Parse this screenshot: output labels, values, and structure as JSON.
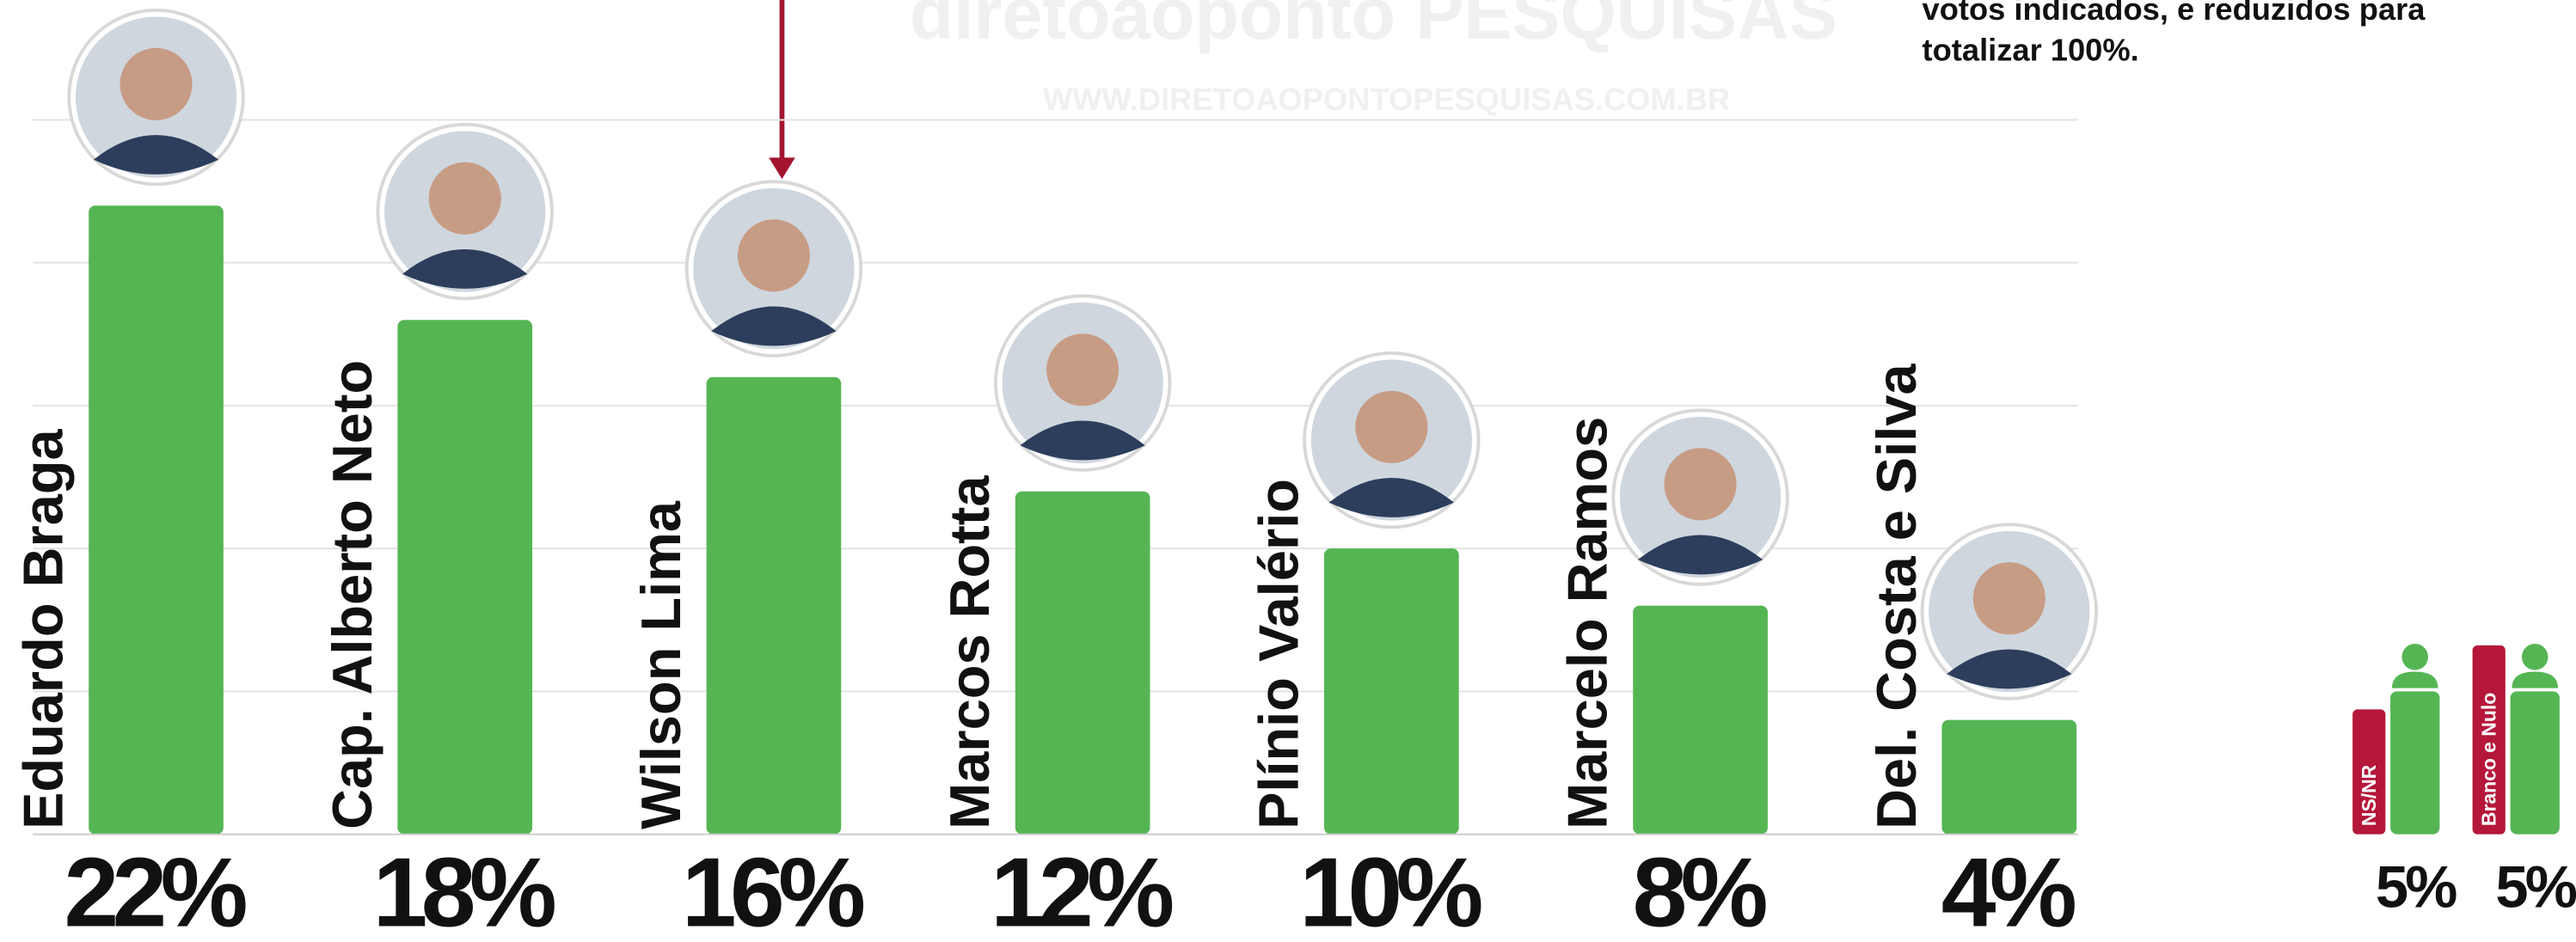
{
  "chart_data": {
    "type": "bar",
    "watermark": "diretoaoponto PESQUISAS",
    "watermark_url": "WWW.DIRETOAOPONTOPESQUISAS.COM.BR",
    "note": [
      "votos indicados, e reduzidos para",
      "totalizar 100%."
    ],
    "categories": [
      "Eduardo Braga",
      "Cap. Alberto Neto",
      "Wilson Lima",
      "Marcos Rotta",
      "Plínio Valério",
      "Marcelo Ramos",
      "Del. Costa e Silva"
    ],
    "values": [
      22,
      18,
      16,
      12,
      10,
      8,
      4
    ],
    "value_labels": [
      "22%",
      "18%",
      "16%",
      "12%",
      "10%",
      "8%",
      "4%"
    ],
    "color": "#55b553",
    "others": {
      "categories": [
        "NS/NR",
        "Branco e Nulo"
      ],
      "values": [
        5,
        5
      ],
      "value_labels": [
        "5%",
        "5%"
      ],
      "label_color": "#b5173a"
    },
    "ylim": [
      0,
      25
    ],
    "yticks": [
      0,
      5,
      10,
      15,
      20,
      25
    ],
    "grid": true
  }
}
